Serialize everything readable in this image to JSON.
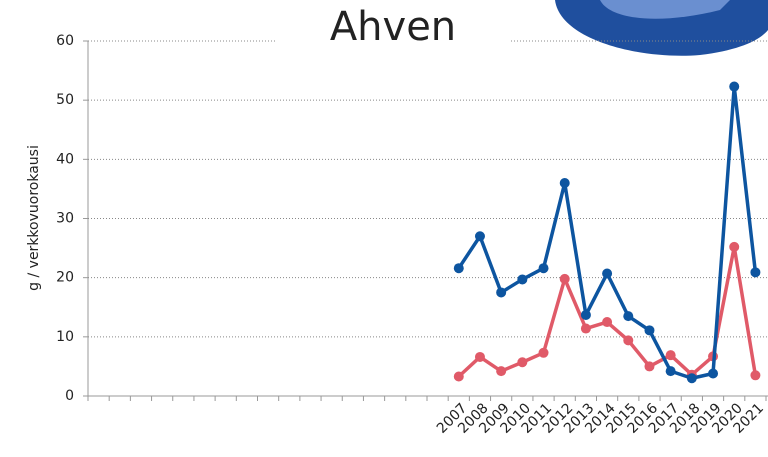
{
  "chart_data": {
    "type": "line",
    "title": "Ahven",
    "y_label": "g / verkkovuorokausi",
    "categories": [
      null,
      null,
      null,
      null,
      null,
      null,
      null,
      null,
      null,
      null,
      null,
      null,
      null,
      null,
      null,
      null,
      null,
      "2007",
      "2008",
      "2009",
      "2010",
      "2011",
      "2012",
      "2013",
      "2014",
      "2015",
      "2016",
      "2017",
      "2018",
      "2019",
      "2020",
      "2021"
    ],
    "series": [
      {
        "color": "#0d55a0",
        "values": [
          null,
          null,
          null,
          null,
          null,
          null,
          null,
          null,
          null,
          null,
          null,
          null,
          null,
          null,
          null,
          null,
          null,
          21.6,
          27,
          17.5,
          19.7,
          21.6,
          36,
          13.7,
          20.7,
          13.5,
          11.1,
          4.2,
          3,
          3.8,
          52.3,
          20.9
        ]
      },
      {
        "color": "#e05a68",
        "values": [
          null,
          null,
          null,
          null,
          null,
          null,
          null,
          null,
          null,
          null,
          null,
          null,
          null,
          null,
          null,
          null,
          null,
          3.3,
          6.6,
          4.2,
          5.7,
          7.3,
          19.8,
          11.4,
          12.5,
          9.4,
          5,
          6.9,
          3.6,
          6.7,
          25.2,
          3.5
        ]
      }
    ],
    "ylim": [
      0,
      60
    ],
    "yticks": [
      0,
      10,
      20,
      30,
      40,
      50,
      60
    ],
    "grid": true
  }
}
